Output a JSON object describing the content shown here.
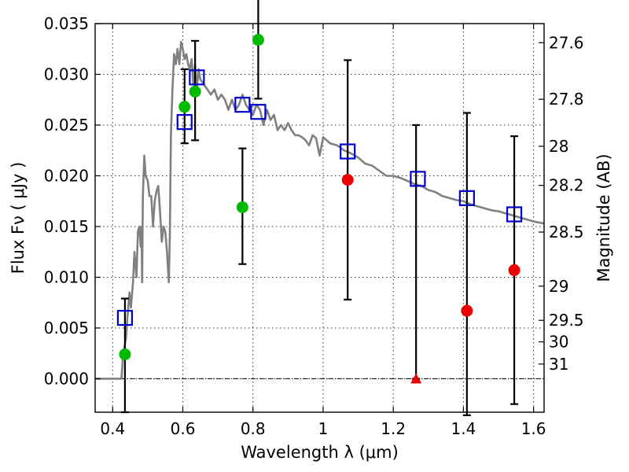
{
  "chart_data": {
    "type": "scatter",
    "title": "",
    "xlabel": "Wavelength  λ (μm)",
    "ylabel": "Flux  Fν  ( μJy )",
    "ylabel_right": "Magnitude (AB)",
    "xlim": [
      0.35,
      1.63
    ],
    "ylim": [
      -0.0033,
      0.035
    ],
    "grid": true,
    "x_ticks": [
      {
        "value": 0.4,
        "label": "0.4"
      },
      {
        "value": 0.6,
        "label": "0.6"
      },
      {
        "value": 0.8,
        "label": "0.8"
      },
      {
        "value": 1.0,
        "label": "1"
      },
      {
        "value": 1.2,
        "label": "1.2"
      },
      {
        "value": 1.4,
        "label": "1.4"
      },
      {
        "value": 1.6,
        "label": "1.6"
      }
    ],
    "y_ticks": [
      {
        "value": 0.0,
        "label": "0.000"
      },
      {
        "value": 0.005,
        "label": "0.005"
      },
      {
        "value": 0.01,
        "label": "0.010"
      },
      {
        "value": 0.015,
        "label": "0.015"
      },
      {
        "value": 0.02,
        "label": "0.020"
      },
      {
        "value": 0.025,
        "label": "0.025"
      },
      {
        "value": 0.03,
        "label": "0.030"
      },
      {
        "value": 0.035,
        "label": "0.035"
      }
    ],
    "right_ticks": [
      {
        "value": 27.6,
        "label": "27.6"
      },
      {
        "value": 27.8,
        "label": "27.8"
      },
      {
        "value": 28.0,
        "label": "28"
      },
      {
        "value": 28.2,
        "label": "28.2"
      },
      {
        "value": 28.5,
        "label": "28.5"
      },
      {
        "value": 29.0,
        "label": "29"
      },
      {
        "value": 29.5,
        "label": "29.5"
      },
      {
        "value": 30.0,
        "label": "30"
      },
      {
        "value": 31.0,
        "label": "31"
      }
    ],
    "model_spectrum": {
      "color": "#808080",
      "x": [
        0.35,
        0.425,
        0.43,
        0.438,
        0.442,
        0.448,
        0.452,
        0.458,
        0.462,
        0.468,
        0.472,
        0.476,
        0.48,
        0.482,
        0.484,
        0.486,
        0.49,
        0.494,
        0.5,
        0.505,
        0.51,
        0.515,
        0.52,
        0.525,
        0.53,
        0.535,
        0.54,
        0.545,
        0.55,
        0.555,
        0.56,
        0.563,
        0.566,
        0.57,
        0.575,
        0.58,
        0.585,
        0.59,
        0.595,
        0.6,
        0.605,
        0.61,
        0.615,
        0.62,
        0.625,
        0.63,
        0.635,
        0.64,
        0.645,
        0.65,
        0.66,
        0.67,
        0.68,
        0.69,
        0.7,
        0.71,
        0.72,
        0.73,
        0.74,
        0.75,
        0.76,
        0.77,
        0.78,
        0.79,
        0.8,
        0.81,
        0.82,
        0.83,
        0.84,
        0.85,
        0.86,
        0.87,
        0.88,
        0.89,
        0.9,
        0.91,
        0.92,
        0.93,
        0.94,
        0.95,
        0.96,
        0.97,
        0.98,
        0.99,
        1.0,
        1.02,
        1.04,
        1.06,
        1.08,
        1.1,
        1.12,
        1.14,
        1.16,
        1.18,
        1.2,
        1.22,
        1.24,
        1.26,
        1.28,
        1.3,
        1.32,
        1.34,
        1.36,
        1.38,
        1.4,
        1.42,
        1.44,
        1.46,
        1.48,
        1.5,
        1.52,
        1.54,
        1.56,
        1.58,
        1.6,
        1.63
      ],
      "y": [
        0.0,
        0.0,
        0.0025,
        0.004,
        0.006,
        0.0085,
        0.007,
        0.0095,
        0.0125,
        0.01,
        0.0145,
        0.015,
        0.013,
        0.015,
        0.0095,
        0.018,
        0.022,
        0.02,
        0.0195,
        0.018,
        0.018,
        0.015,
        0.0175,
        0.0185,
        0.019,
        0.0165,
        0.0135,
        0.015,
        0.0145,
        0.0125,
        0.0095,
        0.014,
        0.024,
        0.028,
        0.032,
        0.031,
        0.0325,
        0.031,
        0.0332,
        0.0325,
        0.0315,
        0.032,
        0.031,
        0.0305,
        0.0315,
        0.029,
        0.031,
        0.0285,
        0.0305,
        0.0295,
        0.029,
        0.0285,
        0.028,
        0.0285,
        0.0275,
        0.028,
        0.0275,
        0.0265,
        0.0275,
        0.0265,
        0.027,
        0.028,
        0.027,
        0.0265,
        0.026,
        0.027,
        0.0265,
        0.025,
        0.0265,
        0.0255,
        0.026,
        0.0245,
        0.025,
        0.0245,
        0.0252,
        0.0245,
        0.024,
        0.024,
        0.0238,
        0.0235,
        0.023,
        0.024,
        0.0237,
        0.022,
        0.0238,
        0.0232,
        0.023,
        0.0225,
        0.0222,
        0.0218,
        0.0212,
        0.021,
        0.0205,
        0.02,
        0.02,
        0.0198,
        0.0195,
        0.0192,
        0.019,
        0.0186,
        0.0184,
        0.018,
        0.0178,
        0.0176,
        0.0175,
        0.0172,
        0.017,
        0.0168,
        0.0166,
        0.0165,
        0.0163,
        0.0161,
        0.0159,
        0.0157,
        0.0155,
        0.0153
      ]
    },
    "model_photometry": {
      "marker": "open-square",
      "color": "#0000cc",
      "x": [
        0.435,
        0.605,
        0.64,
        0.77,
        0.815,
        1.07,
        1.27,
        1.41,
        1.545
      ],
      "y": [
        0.006,
        0.0253,
        0.0297,
        0.027,
        0.0263,
        0.0224,
        0.0197,
        0.0178,
        0.0162
      ]
    },
    "observed_green": {
      "marker": "circle",
      "color": "#00bb00",
      "x": [
        0.435,
        0.605,
        0.635,
        0.77,
        0.815
      ],
      "y": [
        0.0024,
        0.0268,
        0.0283,
        0.0169,
        0.0334
      ],
      "yerr_low": [
        0.0057,
        0.0036,
        0.0048,
        0.0056,
        0.0058
      ],
      "yerr_high": [
        0.0055,
        0.0037,
        0.005,
        0.0058,
        0.0066
      ]
    },
    "observed_red": {
      "marker": "circle",
      "color": "#ee0000",
      "x": [
        1.07,
        1.41,
        1.545
      ],
      "y": [
        0.0196,
        0.0067,
        0.0107
      ],
      "yerr_low": [
        0.0118,
        0.0103,
        0.0132
      ],
      "yerr_high": [
        0.0118,
        0.0195,
        0.0132
      ]
    },
    "upper_limit": {
      "marker": "triangle",
      "color": "#ee0000",
      "x": 1.265,
      "y": 0.0,
      "yerr_high": 0.025
    },
    "zero_line": 0.0
  }
}
